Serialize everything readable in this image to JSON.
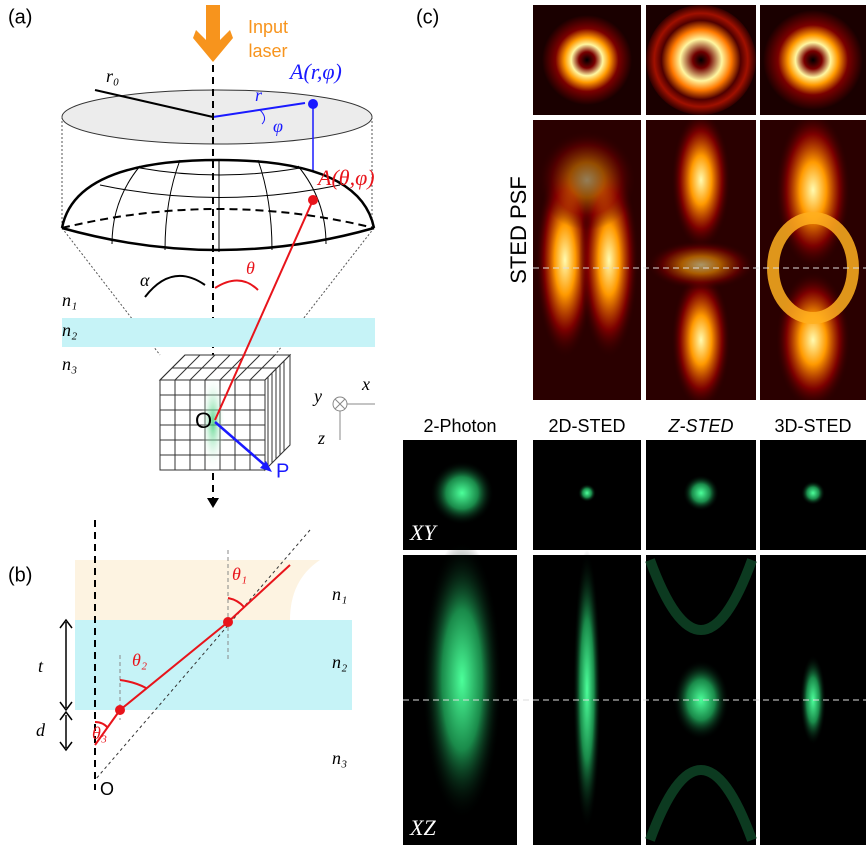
{
  "panel_a": {
    "label": "(a)",
    "input_laser": [
      "Input",
      "laser"
    ],
    "point_top": "A(r,φ)",
    "r0": "r₀",
    "r": "r",
    "phi": "φ",
    "point_sphere": "A(θ,φ)",
    "alpha": "α",
    "theta": "θ",
    "n1": "n₁",
    "n2": "n₂",
    "n3": "n₃",
    "origin": "O",
    "p": "P",
    "axis_x": "x",
    "axis_y": "y",
    "axis_z": "z"
  },
  "panel_b": {
    "label": "(b)",
    "theta1": "θ₁",
    "theta2": "θ₂",
    "theta3": "θ₃",
    "n1": "n₁",
    "n2": "n₂",
    "n3": "n₃",
    "t": "t",
    "d": "d",
    "origin": "O"
  },
  "panel_c": {
    "label": "(c)",
    "row_label": "STED PSF",
    "columns": [
      "2-Photon",
      "2D-STED",
      "Z-STED",
      "3D-STED"
    ],
    "xy": "XY",
    "xz": "XZ"
  }
}
